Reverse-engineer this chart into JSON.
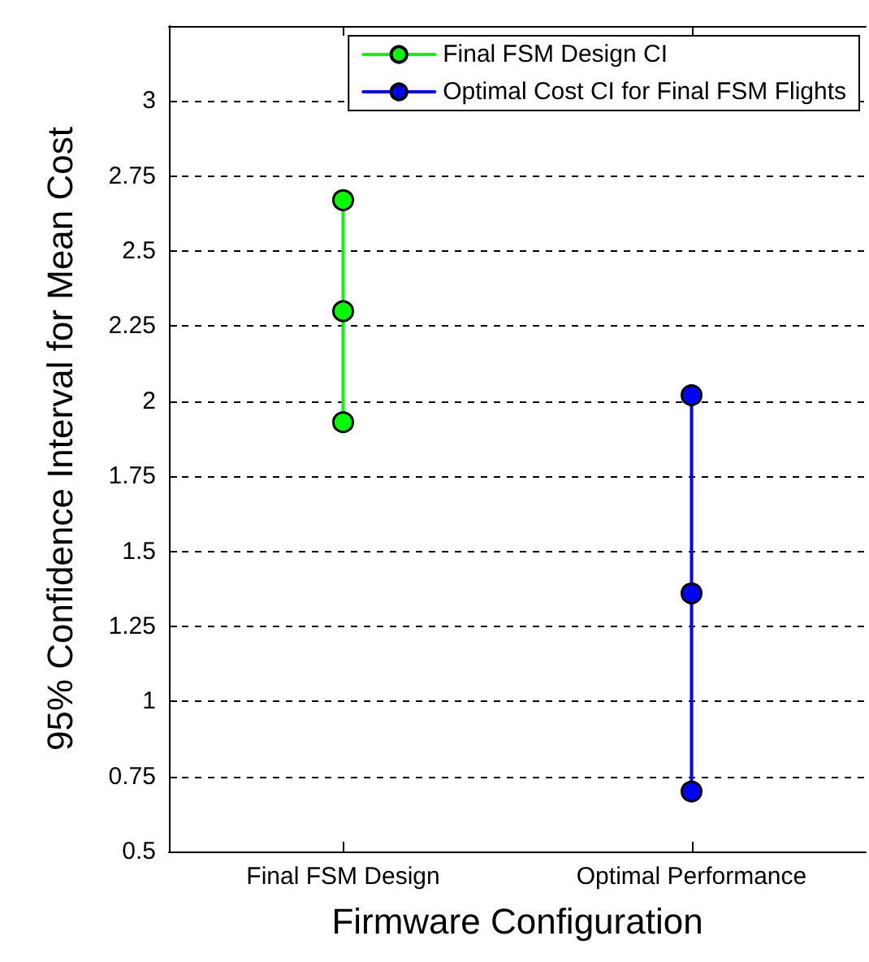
{
  "chart_data": {
    "type": "line",
    "xlabel": "Firmware Configuration",
    "ylabel": "95% Confidence Interval for Mean Cost",
    "categories": [
      "Final FSM Design",
      "Optimal Performance"
    ],
    "series": [
      {
        "name": "Final FSM Design CI",
        "color": "#00ff00",
        "x": [
          "Final FSM Design",
          "Final FSM Design",
          "Final FSM Design"
        ],
        "values": [
          1.93,
          2.3,
          2.67
        ]
      },
      {
        "name": "Optimal Cost CI for Final FSM Flights",
        "color": "#0000ff",
        "x": [
          "Optimal Performance",
          "Optimal Performance",
          "Optimal Performance"
        ],
        "values": [
          0.7,
          1.36,
          2.02
        ]
      }
    ],
    "ylim": [
      0.5,
      3.25
    ],
    "yticks": [
      0.5,
      0.75,
      1,
      1.25,
      1.5,
      1.75,
      2,
      2.25,
      2.5,
      2.75,
      3
    ],
    "grid": "y",
    "legend": "top right",
    "marker": "circle",
    "line_style": "solid"
  }
}
